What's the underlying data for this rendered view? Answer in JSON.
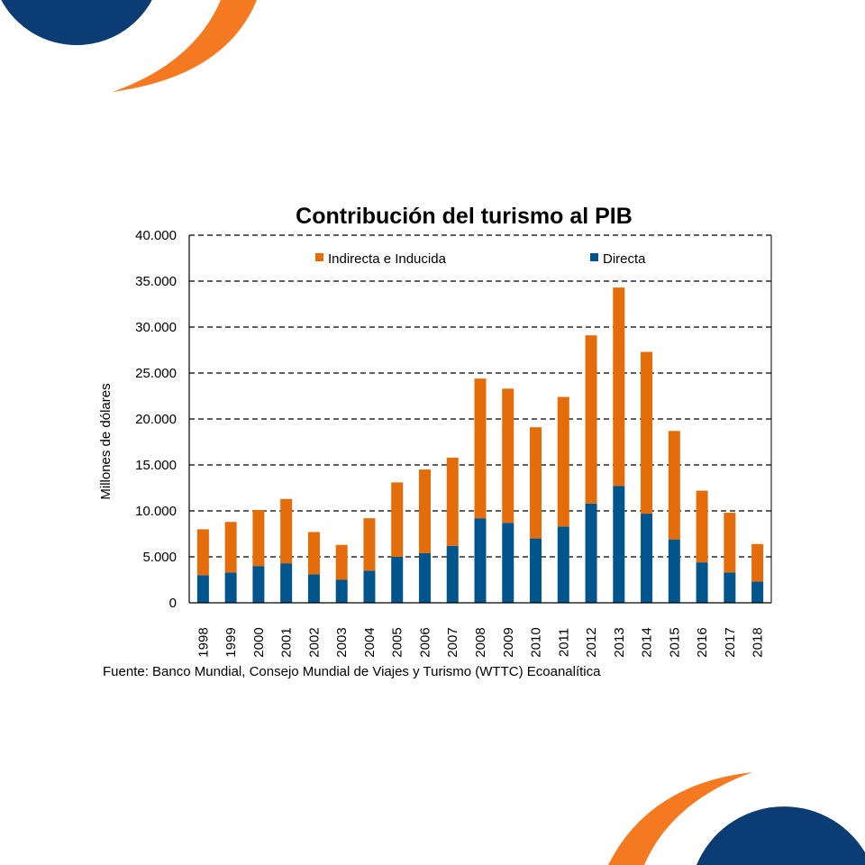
{
  "chart_data": {
    "type": "bar",
    "stacked": true,
    "title": "Contribución del turismo al PIB",
    "xlabel": "",
    "ylabel": "Millones de dólares",
    "ylim": [
      0,
      40000
    ],
    "yticks": [
      0,
      5000,
      10000,
      15000,
      20000,
      25000,
      30000,
      35000,
      40000
    ],
    "ytick_labels": [
      "0",
      "5.000",
      "10.000",
      "15.000",
      "20.000",
      "25.000",
      "30.000",
      "35.000",
      "40.000"
    ],
    "grid": "horizontal dashed",
    "legend_position": "top",
    "categories": [
      "1998",
      "1999",
      "2000",
      "2001",
      "2002",
      "2003",
      "2004",
      "2005",
      "2006",
      "2007",
      "2008",
      "2009",
      "2010",
      "2011",
      "2012",
      "2013",
      "2014",
      "2015",
      "2016",
      "2017",
      "2018"
    ],
    "series": [
      {
        "name": "Directa",
        "color": "#00558c",
        "values": [
          3000,
          3300,
          4000,
          4300,
          3100,
          2500,
          3500,
          5000,
          5400,
          6200,
          9200,
          8700,
          7000,
          8300,
          10800,
          12700,
          9700,
          6900,
          4400,
          3300,
          2300
        ]
      },
      {
        "name": "Indirecta e Inducida",
        "color": "#e46c0a",
        "values": [
          5000,
          5500,
          6100,
          7000,
          4600,
          3800,
          5700,
          8100,
          9100,
          9600,
          15200,
          14600,
          12100,
          14100,
          18300,
          21600,
          17600,
          11800,
          7800,
          6500,
          4100
        ]
      }
    ],
    "source": "Fuente: Banco Mundial, Consejo Mundial de Viajes y Turismo (WTTC) Ecoanalítica"
  },
  "decoration": {
    "blue": "#0b3c73",
    "orange": "#f47920"
  }
}
